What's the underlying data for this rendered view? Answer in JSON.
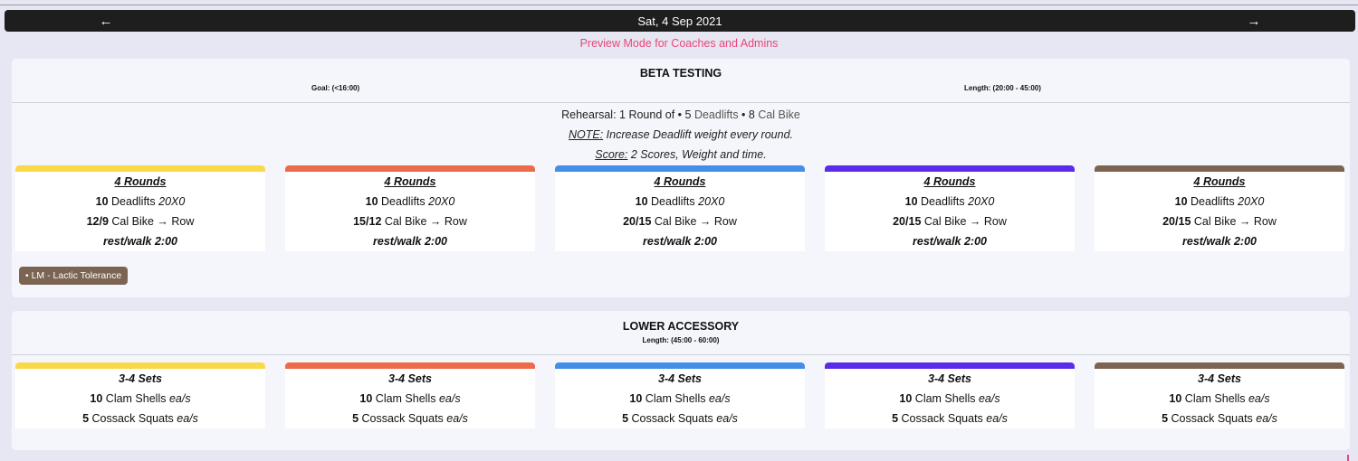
{
  "nav": {
    "date": "Sat, 4 Sep 2021",
    "prev_icon": "←",
    "next_icon": "→"
  },
  "preview_text": "Preview Mode for Coaches and Admins",
  "track_colors": [
    "#f9d94a",
    "#ed6a4b",
    "#428ee8",
    "#5b2be9",
    "#7b6452"
  ],
  "beta": {
    "title": "BETA TESTING",
    "goal": "Goal: (<16:00)",
    "length": "Length: (20:00 - 45:00)",
    "rehearsal_prefix": "Rehearsal: 1 Round of • 5 ",
    "rehearsal_item1": "Deadlifts",
    "rehearsal_mid": " • 8 ",
    "rehearsal_item2": "Cal Bike",
    "note_label": "NOTE:",
    "note_text": " Increase Deadlift weight every round.",
    "score_label": "Score:",
    "score_text": " 2 Scores, Weight and time.",
    "tag": "• LM - Lactic Tolerance",
    "tracks": [
      {
        "rounds": "4 Rounds",
        "dl_reps": "10",
        "dl_name": " Deadlifts ",
        "tempo": "20X0",
        "bike_reps": "12/9",
        "bike_name": " Cal Bike → Row",
        "rest": "rest/walk 2:00"
      },
      {
        "rounds": "4 Rounds",
        "dl_reps": "10",
        "dl_name": " Deadlifts ",
        "tempo": "20X0",
        "bike_reps": "15/12",
        "bike_name": " Cal Bike → Row",
        "rest": "rest/walk 2:00"
      },
      {
        "rounds": "4 Rounds",
        "dl_reps": "10",
        "dl_name": " Deadlifts ",
        "tempo": "20X0",
        "bike_reps": "20/15",
        "bike_name": " Cal Bike → Row",
        "rest": "rest/walk 2:00"
      },
      {
        "rounds": "4 Rounds",
        "dl_reps": "10",
        "dl_name": " Deadlifts ",
        "tempo": "20X0",
        "bike_reps": "20/15",
        "bike_name": " Cal Bike → Row",
        "rest": "rest/walk 2:00"
      },
      {
        "rounds": "4 Rounds",
        "dl_reps": "10",
        "dl_name": " Deadlifts ",
        "tempo": "20X0",
        "bike_reps": "20/15",
        "bike_name": " Cal Bike → Row",
        "rest": "rest/walk 2:00"
      }
    ]
  },
  "lower": {
    "title": "LOWER ACCESSORY",
    "length": "Length: (45:00 - 60:00)",
    "tracks": [
      {
        "sets": "3-4 Sets",
        "clam_reps": "10",
        "clam_name": " Clam Shells ",
        "clam_suffix": "ea/s",
        "cossack_reps": "5",
        "cossack_name": " Cossack Squats ",
        "cossack_suffix": "ea/s"
      },
      {
        "sets": "3-4 Sets",
        "clam_reps": "10",
        "clam_name": " Clam Shells ",
        "clam_suffix": "ea/s",
        "cossack_reps": "5",
        "cossack_name": " Cossack Squats ",
        "cossack_suffix": "ea/s"
      },
      {
        "sets": "3-4 Sets",
        "clam_reps": "10",
        "clam_name": " Clam Shells ",
        "clam_suffix": "ea/s",
        "cossack_reps": "5",
        "cossack_name": " Cossack Squats ",
        "cossack_suffix": "ea/s"
      },
      {
        "sets": "3-4 Sets",
        "clam_reps": "10",
        "clam_name": " Clam Shells ",
        "clam_suffix": "ea/s",
        "cossack_reps": "5",
        "cossack_name": " Cossack Squats ",
        "cossack_suffix": "ea/s"
      },
      {
        "sets": "3-4 Sets",
        "clam_reps": "10",
        "clam_name": " Clam Shells ",
        "clam_suffix": "ea/s",
        "cossack_reps": "5",
        "cossack_name": " Cossack Squats ",
        "cossack_suffix": "ea/s"
      }
    ]
  }
}
